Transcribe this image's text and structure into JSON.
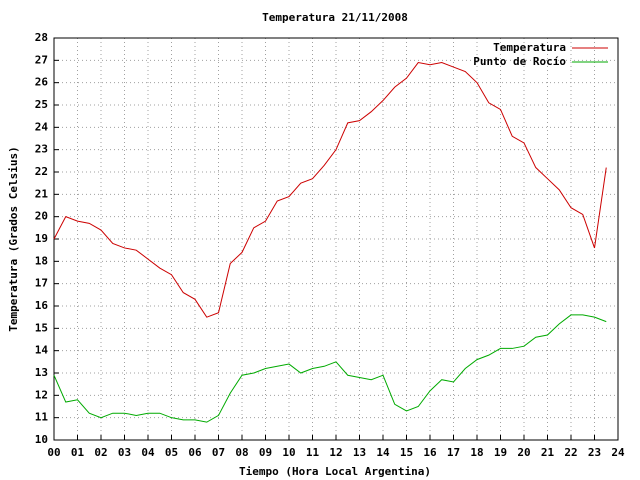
{
  "chart_data": {
    "type": "line",
    "title": "Temperatura 21/11/2008",
    "xlabel": "Tiempo (Hora Local Argentina)",
    "ylabel": "Temperatura (Grados Celsius)",
    "x": [
      0,
      0.5,
      1,
      1.5,
      2,
      2.5,
      3,
      3.5,
      4,
      4.5,
      5,
      5.5,
      6,
      6.5,
      7,
      7.5,
      8,
      8.5,
      9,
      9.5,
      10,
      10.5,
      11,
      11.5,
      12,
      12.5,
      13,
      13.5,
      14,
      14.5,
      15,
      15.5,
      16,
      16.5,
      17,
      17.5,
      18,
      18.5,
      19,
      19.5,
      20,
      20.5,
      21,
      21.5,
      22,
      22.5,
      23,
      23.5
    ],
    "series": [
      {
        "name": "Temperatura",
        "color": "#cc0000",
        "values": [
          19.0,
          20.0,
          19.8,
          19.7,
          19.4,
          18.8,
          18.6,
          18.5,
          18.1,
          17.7,
          17.4,
          16.6,
          16.3,
          15.5,
          15.7,
          17.9,
          18.4,
          19.5,
          19.8,
          20.7,
          20.9,
          21.5,
          21.7,
          22.3,
          23.0,
          24.2,
          24.3,
          24.7,
          25.2,
          25.8,
          26.2,
          26.9,
          26.8,
          26.9,
          26.7,
          26.5,
          26.0,
          25.1,
          24.8,
          23.6,
          23.3,
          22.2,
          21.7,
          21.2,
          20.4,
          20.1,
          18.6,
          22.2
        ]
      },
      {
        "name": "Punto de Rocío",
        "color": "#00aa00",
        "values": [
          12.9,
          11.7,
          11.8,
          11.2,
          11.0,
          11.2,
          11.2,
          11.1,
          11.2,
          11.2,
          11.0,
          10.9,
          10.9,
          10.8,
          11.1,
          12.1,
          12.9,
          13.0,
          13.2,
          13.3,
          13.4,
          13.0,
          13.2,
          13.3,
          13.5,
          12.9,
          12.8,
          12.7,
          12.9,
          11.6,
          11.3,
          11.5,
          12.2,
          12.7,
          12.6,
          13.2,
          13.6,
          13.8,
          14.1,
          14.1,
          14.2,
          14.6,
          14.7,
          15.2,
          15.6,
          15.6,
          15.5,
          15.3
        ]
      }
    ],
    "xlim": [
      0,
      24
    ],
    "xticks": [
      {
        "value": 0,
        "label": "00"
      },
      {
        "value": 1,
        "label": "01"
      },
      {
        "value": 2,
        "label": "02"
      },
      {
        "value": 3,
        "label": "03"
      },
      {
        "value": 4,
        "label": "04"
      },
      {
        "value": 5,
        "label": "05"
      },
      {
        "value": 6,
        "label": "06"
      },
      {
        "value": 7,
        "label": "07"
      },
      {
        "value": 8,
        "label": "08"
      },
      {
        "value": 9,
        "label": "09"
      },
      10,
      11,
      12,
      13,
      14,
      15,
      16,
      17,
      18,
      19,
      20,
      21,
      22,
      23,
      24
    ],
    "ylim": [
      10,
      28
    ],
    "yticks": [
      10,
      11,
      12,
      13,
      14,
      15,
      16,
      17,
      18,
      19,
      20,
      21,
      22,
      23,
      24,
      25,
      26,
      27,
      28
    ],
    "grid": true,
    "legend": "top-right"
  }
}
